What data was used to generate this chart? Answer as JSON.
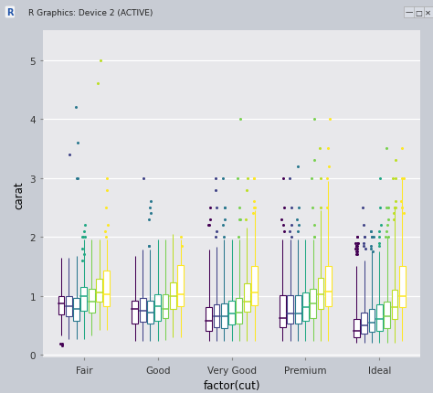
{
  "xlabel": "factor(cut)",
  "ylabel": "carat",
  "cuts": [
    "Fair",
    "Good",
    "Very Good",
    "Premium",
    "Ideal"
  ],
  "ylim": [
    -0.05,
    5.5
  ],
  "yticks": [
    0,
    1,
    2,
    3,
    4,
    5
  ],
  "plot_bg": "#e8e8eb",
  "fig_bg": "#c8ccd4",
  "titlebar_bg": "#c2c9d6",
  "n_groups": 7,
  "viridis_colors": [
    "#440154",
    "#414487",
    "#2a788e",
    "#22a884",
    "#7ad151",
    "#bddf26",
    "#fde725"
  ],
  "box_data": {
    "Fair": {
      "medians": [
        0.87,
        0.82,
        0.77,
        1.0,
        0.9,
        1.05,
        1.02
      ],
      "q1": [
        0.68,
        0.65,
        0.57,
        0.75,
        0.72,
        0.9,
        0.82
      ],
      "q3": [
        1.0,
        1.0,
        0.96,
        1.15,
        1.12,
        1.28,
        1.42
      ],
      "whisker_lo": [
        0.32,
        0.27,
        0.27,
        0.27,
        0.32,
        0.42,
        0.42
      ],
      "whisker_hi": [
        1.65,
        1.65,
        1.68,
        1.95,
        1.95,
        1.95,
        1.95
      ],
      "outliers_y": [
        [
          0.18,
          0.18,
          0.15
        ],
        [
          3.4
        ],
        [
          4.2,
          3.6,
          3.0,
          3.0
        ],
        [
          2.0,
          2.0,
          1.8,
          1.7,
          1.6,
          2.2,
          2.1,
          2.0
        ],
        [],
        [
          4.6,
          5.0
        ],
        [
          2.1,
          2.2,
          2.8,
          2.5,
          3.0,
          2.0
        ]
      ]
    },
    "Good": {
      "medians": [
        0.77,
        0.75,
        0.72,
        0.82,
        0.77,
        1.0,
        1.02
      ],
      "q1": [
        0.52,
        0.56,
        0.52,
        0.57,
        0.62,
        0.77,
        0.82
      ],
      "q3": [
        0.92,
        0.96,
        0.92,
        1.02,
        1.02,
        1.22,
        1.52
      ],
      "whisker_lo": [
        0.23,
        0.23,
        0.23,
        0.23,
        0.25,
        0.3,
        0.3
      ],
      "whisker_hi": [
        1.68,
        1.78,
        1.78,
        1.95,
        1.95,
        2.05,
        1.95
      ],
      "outliers_y": [
        [],
        [
          3.0
        ],
        [
          2.5,
          2.3,
          1.85,
          2.6,
          2.4,
          1.85
        ],
        [],
        [],
        [],
        [
          2.0,
          1.85
        ]
      ]
    },
    "Very Good": {
      "medians": [
        0.57,
        0.65,
        0.65,
        0.7,
        0.72,
        0.9,
        1.05
      ],
      "q1": [
        0.41,
        0.46,
        0.45,
        0.51,
        0.53,
        0.73,
        0.83
      ],
      "q3": [
        0.81,
        0.86,
        0.87,
        0.91,
        0.96,
        1.21,
        1.51
      ],
      "whisker_lo": [
        0.23,
        0.23,
        0.23,
        0.23,
        0.23,
        0.23,
        0.23
      ],
      "whisker_hi": [
        1.78,
        1.83,
        1.95,
        1.95,
        1.95,
        2.15,
        2.45
      ],
      "outliers_y": [
        [
          2.2,
          2.3,
          2.5,
          2.2
        ],
        [
          2.0,
          2.1,
          2.5,
          3.0,
          2.8
        ],
        [
          3.0,
          2.5,
          2.3,
          2.0,
          2.2,
          2.5
        ],
        [],
        [
          2.5,
          2.3,
          2.0,
          3.0,
          2.3,
          4.0
        ],
        [
          3.0,
          2.8,
          2.3
        ],
        [
          2.5,
          3.0,
          2.6,
          2.4,
          2.5,
          3.0
        ]
      ]
    },
    "Premium": {
      "medians": [
        0.62,
        0.7,
        0.7,
        0.8,
        0.87,
        1.02,
        1.07
      ],
      "q1": [
        0.47,
        0.52,
        0.52,
        0.57,
        0.62,
        0.77,
        0.82
      ],
      "q3": [
        1.01,
        1.01,
        1.01,
        1.06,
        1.11,
        1.31,
        1.51
      ],
      "whisker_lo": [
        0.23,
        0.23,
        0.23,
        0.23,
        0.23,
        0.23,
        0.23
      ],
      "whisker_hi": [
        1.95,
        1.95,
        1.95,
        1.95,
        1.95,
        2.45,
        2.95
      ],
      "outliers_y": [
        [
          2.3,
          2.2,
          2.5,
          3.0,
          2.1
        ],
        [
          2.2,
          2.1,
          2.5,
          3.0,
          2.0
        ],
        [
          2.1,
          2.2,
          2.3,
          3.2,
          2.5
        ],
        [],
        [
          2.5,
          2.2,
          2.0,
          3.3,
          4.0,
          2.0,
          3.0
        ],
        [
          3.5,
          3.0,
          2.5
        ],
        [
          3.0,
          3.5,
          4.0,
          2.5,
          3.2
        ]
      ]
    },
    "Ideal": {
      "medians": [
        0.4,
        0.5,
        0.55,
        0.6,
        0.65,
        0.8,
        1.0
      ],
      "q1": [
        0.3,
        0.35,
        0.38,
        0.4,
        0.45,
        0.6,
        0.8
      ],
      "q3": [
        0.6,
        0.72,
        0.78,
        0.85,
        0.9,
        1.1,
        1.5
      ],
      "whisker_lo": [
        0.2,
        0.2,
        0.2,
        0.2,
        0.2,
        0.2,
        0.23
      ],
      "whisker_hi": [
        1.5,
        1.6,
        1.75,
        1.75,
        2.0,
        2.5,
        3.0
      ],
      "outliers_y": [
        [
          1.85,
          1.85,
          1.9,
          2.0,
          1.7,
          1.75,
          1.8,
          1.9,
          1.85,
          1.8,
          1.75,
          1.85,
          2.0,
          1.9,
          1.7
        ],
        [
          2.2,
          2.0,
          1.85,
          2.5,
          1.8,
          2.0,
          1.9
        ],
        [
          2.0,
          2.0,
          2.1,
          1.8,
          1.75,
          2.0,
          2.1,
          1.85
        ],
        [
          1.85,
          2.0,
          2.1,
          2.5,
          3.0,
          1.9,
          2.2
        ],
        [
          2.5,
          2.1,
          2.0,
          2.2,
          2.3,
          2.0,
          2.5,
          3.5
        ],
        [
          2.5,
          3.0,
          2.5,
          2.6,
          2.4,
          2.3,
          3.3,
          2.5,
          3.0
        ],
        [
          3.5,
          3.0,
          2.5,
          2.6,
          3.0,
          2.4
        ]
      ]
    }
  }
}
